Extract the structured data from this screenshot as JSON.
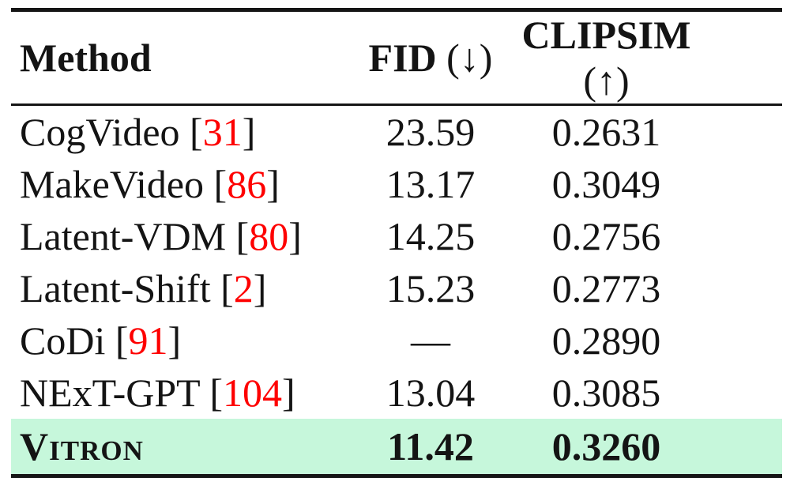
{
  "table": {
    "columns": {
      "method": {
        "label": "Method"
      },
      "fid": {
        "label": "FID",
        "suffix": "(↓)"
      },
      "clipsim": {
        "label": "CLIPSIM",
        "suffix": "(↑)"
      }
    },
    "brackets": {
      "open": "[",
      "close": "]"
    },
    "rows": [
      {
        "method": "CogVideo",
        "cite": "31",
        "fid": "23.59",
        "clipsim": "0.2631"
      },
      {
        "method": "MakeVideo",
        "cite": "86",
        "fid": "13.17",
        "clipsim": "0.3049"
      },
      {
        "method": "Latent-VDM",
        "cite": "80",
        "fid": "14.25",
        "clipsim": "0.2756"
      },
      {
        "method": "Latent-Shift",
        "cite": "2",
        "fid": "15.23",
        "clipsim": "0.2773"
      },
      {
        "method": "CoDi",
        "cite": "91",
        "fid": "—",
        "clipsim": "0.2890"
      },
      {
        "method": "NExT-GPT",
        "cite": "104",
        "fid": "13.04",
        "clipsim": "0.3085"
      },
      {
        "method": "Vitron",
        "fid": "11.42",
        "clipsim": "0.3260",
        "highlight": true
      }
    ],
    "colors": {
      "highlight_bg": "#c6f7db",
      "citation_red": "#fe0000",
      "rule_black": "#151515",
      "text_black": "#141414"
    }
  }
}
